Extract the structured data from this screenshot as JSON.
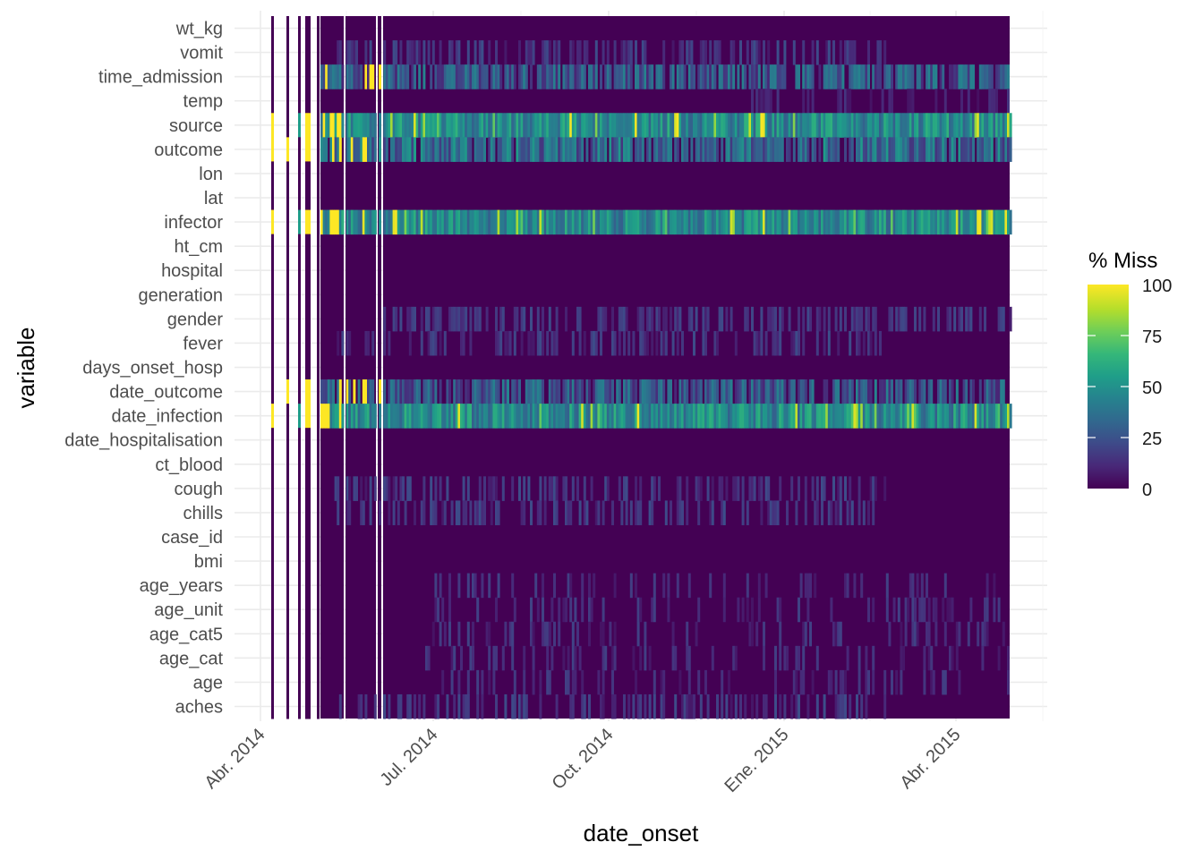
{
  "chart_data": {
    "type": "heatmap",
    "title": "",
    "xlabel": "date_onset",
    "ylabel": "variable",
    "x_tick_labels": [
      "Abr. 2014",
      "Jul. 2014",
      "Oct. 2014",
      "Ene. 2015",
      "Abr. 2015"
    ],
    "x_range": [
      "2014-03-28",
      "2015-05-25"
    ],
    "y_categories_top_to_bottom": [
      "wt_kg",
      "vomit",
      "time_admission",
      "temp",
      "source",
      "outcome",
      "lon",
      "lat",
      "infector",
      "ht_cm",
      "hospital",
      "generation",
      "gender",
      "fever",
      "days_onset_hosp",
      "date_outcome",
      "date_infection",
      "date_hospitalisation",
      "ct_blood",
      "cough",
      "chills",
      "case_id",
      "bmi",
      "age_years",
      "age_unit",
      "age_cat5",
      "age_cat",
      "age",
      "aches"
    ],
    "legend": {
      "title": "% Miss",
      "position": "right",
      "scale": "viridis",
      "ticks": [
        100,
        75,
        50,
        25,
        0
      ],
      "range": [
        0,
        100
      ]
    },
    "grid": true,
    "row_missingness_profile": [
      {
        "variable": "wt_kg",
        "typical_pct_missing": 0
      },
      {
        "variable": "vomit",
        "typical_pct_missing": 8
      },
      {
        "variable": "time_admission",
        "typical_pct_missing": 25
      },
      {
        "variable": "temp",
        "typical_pct_missing": 3
      },
      {
        "variable": "source",
        "typical_pct_missing": 45
      },
      {
        "variable": "outcome",
        "typical_pct_missing": 30
      },
      {
        "variable": "lon",
        "typical_pct_missing": 0
      },
      {
        "variable": "lat",
        "typical_pct_missing": 0
      },
      {
        "variable": "infector",
        "typical_pct_missing": 45
      },
      {
        "variable": "ht_cm",
        "typical_pct_missing": 0
      },
      {
        "variable": "hospital",
        "typical_pct_missing": 0
      },
      {
        "variable": "generation",
        "typical_pct_missing": 0
      },
      {
        "variable": "gender",
        "typical_pct_missing": 8
      },
      {
        "variable": "fever",
        "typical_pct_missing": 8
      },
      {
        "variable": "days_onset_hosp",
        "typical_pct_missing": 0
      },
      {
        "variable": "date_outcome",
        "typical_pct_missing": 25
      },
      {
        "variable": "date_infection",
        "typical_pct_missing": 45
      },
      {
        "variable": "date_hospitalisation",
        "typical_pct_missing": 0
      },
      {
        "variable": "ct_blood",
        "typical_pct_missing": 0
      },
      {
        "variable": "cough",
        "typical_pct_missing": 8
      },
      {
        "variable": "chills",
        "typical_pct_missing": 8
      },
      {
        "variable": "case_id",
        "typical_pct_missing": 0
      },
      {
        "variable": "bmi",
        "typical_pct_missing": 0
      },
      {
        "variable": "age_years",
        "typical_pct_missing": 5
      },
      {
        "variable": "age_unit",
        "typical_pct_missing": 5
      },
      {
        "variable": "age_cat5",
        "typical_pct_missing": 5
      },
      {
        "variable": "age_cat",
        "typical_pct_missing": 5
      },
      {
        "variable": "age",
        "typical_pct_missing": 5
      },
      {
        "variable": "aches",
        "typical_pct_missing": 8
      }
    ],
    "viridis_colors": [
      "#440154",
      "#482878",
      "#3e4a89",
      "#31688e",
      "#26828e",
      "#1f9e89",
      "#35b779",
      "#6ece58",
      "#b5de2b",
      "#fde725"
    ]
  }
}
